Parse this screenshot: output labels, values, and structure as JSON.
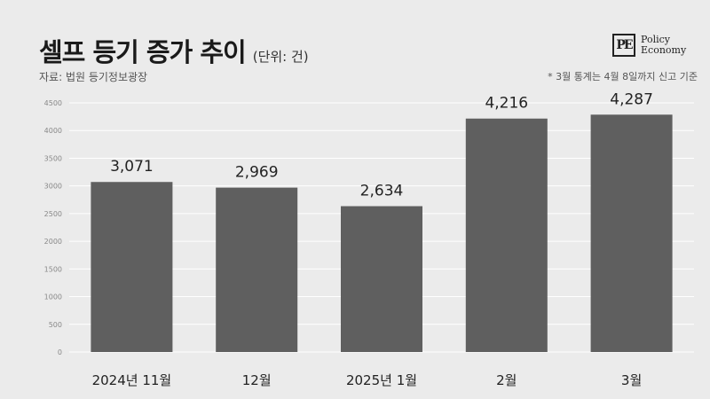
{
  "header": {
    "title": "셀프 등기 증가 추이",
    "unit": "(단위: 건)",
    "source": "자료: 법원 등기정보광장",
    "note": "* 3월 통계는 4월 8일까지 신고 기준"
  },
  "logo": {
    "mark": "PE",
    "line1": "Policy",
    "line2": "Economy"
  },
  "colors": {
    "background": "#ebebeb",
    "bar": "#5f5f5f",
    "grid": "#ffffff"
  },
  "chart_data": {
    "type": "bar",
    "categories": [
      "2024년 11월",
      "12월",
      "2025년 1월",
      "2월",
      "3월"
    ],
    "values": [
      3071,
      2969,
      2634,
      4216,
      4287
    ],
    "value_labels": [
      "3,071",
      "2,969",
      "2,634",
      "4,216",
      "4,287"
    ],
    "ylim": [
      0,
      4500
    ],
    "yticks": [
      0,
      500,
      1000,
      1500,
      2000,
      2500,
      3000,
      3500,
      4000,
      4500
    ],
    "grid": true
  }
}
